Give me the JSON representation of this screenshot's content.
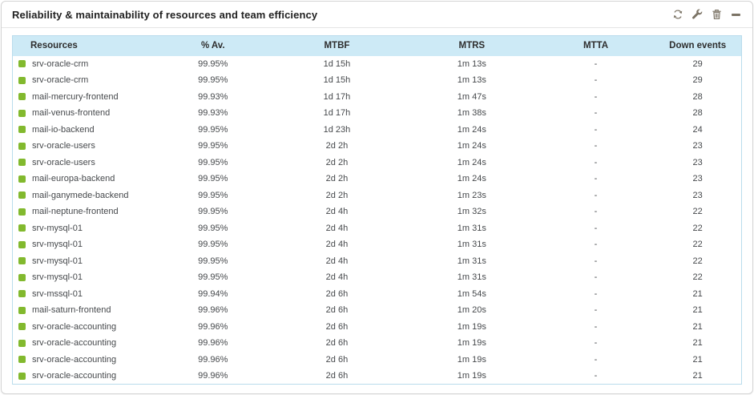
{
  "widget": {
    "title": "Reliability & maintainability of resources and team efficiency",
    "toolbar_icons": [
      "refresh-icon",
      "wrench-icon",
      "trash-icon",
      "collapse-icon"
    ]
  },
  "table": {
    "columns": [
      {
        "key": "resource",
        "label": "Resources"
      },
      {
        "key": "availability",
        "label": "% Av."
      },
      {
        "key": "mtbf",
        "label": "MTBF"
      },
      {
        "key": "mtrs",
        "label": "MTRS"
      },
      {
        "key": "mtta",
        "label": "MTTA"
      },
      {
        "key": "down_events",
        "label": "Down events"
      }
    ],
    "row_keys": [
      "resource",
      "availability",
      "mtbf",
      "mtrs",
      "mtta",
      "down_events"
    ],
    "rows": [
      {
        "resource": "srv-oracle-crm",
        "availability": "99.95%",
        "mtbf": "1d 15h",
        "mtrs": "1m 13s",
        "mtta": "-",
        "down_events": "29"
      },
      {
        "resource": "srv-oracle-crm",
        "availability": "99.95%",
        "mtbf": "1d 15h",
        "mtrs": "1m 13s",
        "mtta": "-",
        "down_events": "29"
      },
      {
        "resource": "mail-mercury-frontend",
        "availability": "99.93%",
        "mtbf": "1d 17h",
        "mtrs": "1m 47s",
        "mtta": "-",
        "down_events": "28"
      },
      {
        "resource": "mail-venus-frontend",
        "availability": "99.93%",
        "mtbf": "1d 17h",
        "mtrs": "1m 38s",
        "mtta": "-",
        "down_events": "28"
      },
      {
        "resource": "mail-io-backend",
        "availability": "99.95%",
        "mtbf": "1d 23h",
        "mtrs": "1m 24s",
        "mtta": "-",
        "down_events": "24"
      },
      {
        "resource": "srv-oracle-users",
        "availability": "99.95%",
        "mtbf": "2d 2h",
        "mtrs": "1m 24s",
        "mtta": "-",
        "down_events": "23"
      },
      {
        "resource": "srv-oracle-users",
        "availability": "99.95%",
        "mtbf": "2d 2h",
        "mtrs": "1m 24s",
        "mtta": "-",
        "down_events": "23"
      },
      {
        "resource": "mail-europa-backend",
        "availability": "99.95%",
        "mtbf": "2d 2h",
        "mtrs": "1m 24s",
        "mtta": "-",
        "down_events": "23"
      },
      {
        "resource": "mail-ganymede-backend",
        "availability": "99.95%",
        "mtbf": "2d 2h",
        "mtrs": "1m 23s",
        "mtta": "-",
        "down_events": "23"
      },
      {
        "resource": "mail-neptune-frontend",
        "availability": "99.95%",
        "mtbf": "2d 4h",
        "mtrs": "1m 32s",
        "mtta": "-",
        "down_events": "22"
      },
      {
        "resource": "srv-mysql-01",
        "availability": "99.95%",
        "mtbf": "2d 4h",
        "mtrs": "1m 31s",
        "mtta": "-",
        "down_events": "22"
      },
      {
        "resource": "srv-mysql-01",
        "availability": "99.95%",
        "mtbf": "2d 4h",
        "mtrs": "1m 31s",
        "mtta": "-",
        "down_events": "22"
      },
      {
        "resource": "srv-mysql-01",
        "availability": "99.95%",
        "mtbf": "2d 4h",
        "mtrs": "1m 31s",
        "mtta": "-",
        "down_events": "22"
      },
      {
        "resource": "srv-mysql-01",
        "availability": "99.95%",
        "mtbf": "2d 4h",
        "mtrs": "1m 31s",
        "mtta": "-",
        "down_events": "22"
      },
      {
        "resource": "srv-mssql-01",
        "availability": "99.94%",
        "mtbf": "2d 6h",
        "mtrs": "1m 54s",
        "mtta": "-",
        "down_events": "21"
      },
      {
        "resource": "mail-saturn-frontend",
        "availability": "99.96%",
        "mtbf": "2d 6h",
        "mtrs": "1m 20s",
        "mtta": "-",
        "down_events": "21"
      },
      {
        "resource": "srv-oracle-accounting",
        "availability": "99.96%",
        "mtbf": "2d 6h",
        "mtrs": "1m 19s",
        "mtta": "-",
        "down_events": "21"
      },
      {
        "resource": "srv-oracle-accounting",
        "availability": "99.96%",
        "mtbf": "2d 6h",
        "mtrs": "1m 19s",
        "mtta": "-",
        "down_events": "21"
      },
      {
        "resource": "srv-oracle-accounting",
        "availability": "99.96%",
        "mtbf": "2d 6h",
        "mtrs": "1m 19s",
        "mtta": "-",
        "down_events": "21"
      },
      {
        "resource": "srv-oracle-accounting",
        "availability": "99.96%",
        "mtbf": "2d 6h",
        "mtrs": "1m 19s",
        "mtta": "-",
        "down_events": "21"
      }
    ]
  },
  "colors": {
    "status_ok": "#82b92e",
    "header_bg": "#cdeaf6",
    "table_border": "#b9dcec",
    "icon_gray": "#7b7365",
    "title_color": "#222222",
    "row_text": "#46494c"
  }
}
